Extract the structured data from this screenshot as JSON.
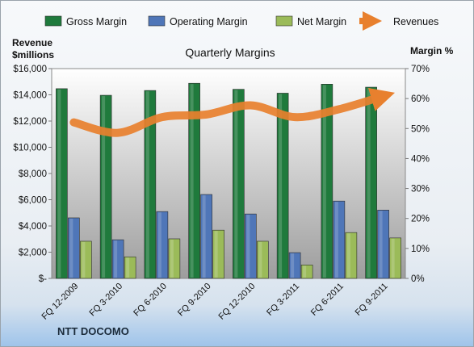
{
  "company": "NTT DOCOMO",
  "chart_data": {
    "type": "bar",
    "title": "Quarterly Margins",
    "categories": [
      "FQ 12-2009",
      "FQ 3-2010",
      "FQ 6-2010",
      "FQ 9-2010",
      "FQ 12-2010",
      "FQ 3-2011",
      "FQ 6-2011",
      "FQ 9-2011"
    ],
    "left_axis": {
      "label_line1": "Revenue",
      "label_line2": "$millions",
      "range": [
        0,
        16000
      ],
      "ticks": [
        {
          "value": 0,
          "label": "$-"
        },
        {
          "value": 2000,
          "label": "$2,000"
        },
        {
          "value": 4000,
          "label": "$4,000"
        },
        {
          "value": 6000,
          "label": "$6,000"
        },
        {
          "value": 8000,
          "label": "$8,000"
        },
        {
          "value": 10000,
          "label": "$10,000"
        },
        {
          "value": 12000,
          "label": "$12,000"
        },
        {
          "value": 14000,
          "label": "$14,000"
        },
        {
          "value": 16000,
          "label": "$16,000"
        }
      ]
    },
    "right_axis": {
      "label": "Margin %",
      "range": [
        0,
        70
      ],
      "ticks": [
        {
          "value": 0,
          "label": "0%"
        },
        {
          "value": 10,
          "label": "10%"
        },
        {
          "value": 20,
          "label": "20%"
        },
        {
          "value": 30,
          "label": "30%"
        },
        {
          "value": 40,
          "label": "40%"
        },
        {
          "value": 50,
          "label": "50%"
        },
        {
          "value": 60,
          "label": "60%"
        },
        {
          "value": 70,
          "label": "70%"
        }
      ]
    },
    "series": [
      {
        "name": "Gross Margin",
        "kind": "bar",
        "axis": "right",
        "color": "#1f7a3c",
        "values": [
          63.3,
          61.1,
          62.7,
          65.1,
          63.1,
          61.8,
          64.8,
          63.8
        ]
      },
      {
        "name": "Operating Margin",
        "kind": "bar",
        "axis": "right",
        "color": "#4f76b8",
        "values": [
          20.2,
          12.9,
          22.3,
          28.0,
          21.5,
          8.6,
          25.8,
          22.8
        ]
      },
      {
        "name": "Net Margin",
        "kind": "bar",
        "axis": "right",
        "color": "#9bbb59",
        "values": [
          12.4,
          7.2,
          13.2,
          16.1,
          12.4,
          4.5,
          15.3,
          13.5
        ]
      },
      {
        "name": "Revenues",
        "kind": "line",
        "axis": "left",
        "color": "#e8802e",
        "values": [
          11900,
          11100,
          12300,
          12500,
          13200,
          12300,
          12900,
          13900
        ]
      }
    ],
    "grid": false,
    "legend": "top"
  }
}
